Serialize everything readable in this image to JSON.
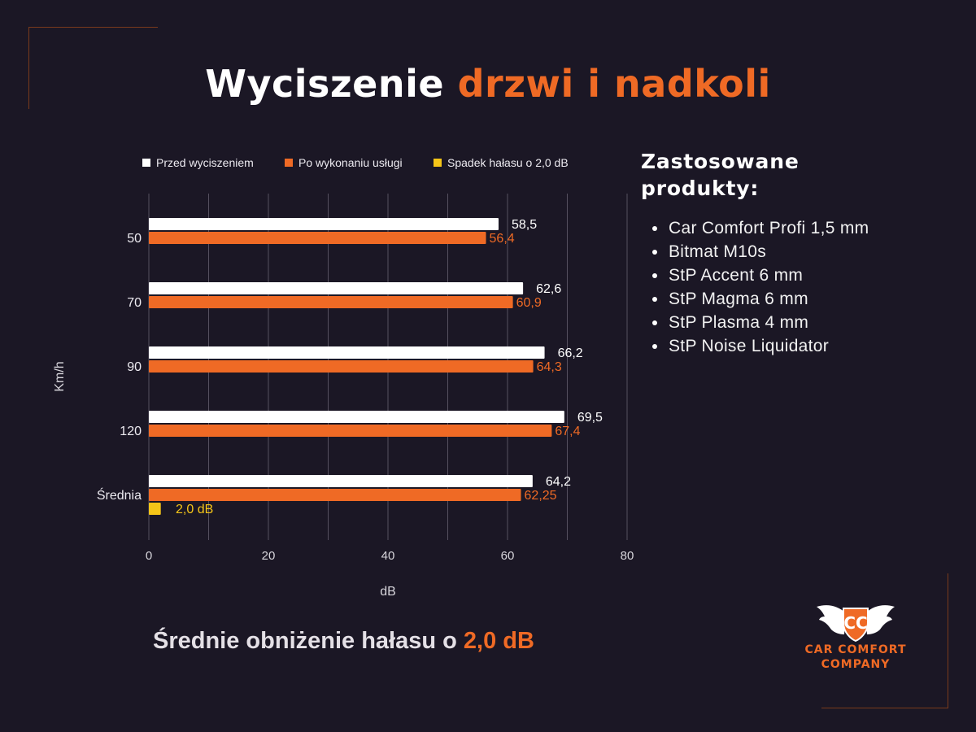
{
  "title": {
    "part1": "Wyciszenie",
    "part2": "drzwi i nadkoli"
  },
  "chart_data": {
    "type": "bar",
    "orientation": "horizontal",
    "categories": [
      "50",
      "70",
      "90",
      "120",
      "Średnia"
    ],
    "series": [
      {
        "name": "Przed wyciszeniem",
        "color": "#ffffff",
        "values": [
          58.5,
          62.6,
          66.2,
          69.5,
          64.2
        ],
        "labels": [
          "58,5",
          "62,6",
          "66,2",
          "69,5",
          "64,2"
        ]
      },
      {
        "name": "Po wykonaniu usługi",
        "color": "#ef6a25",
        "values": [
          56.4,
          60.9,
          64.3,
          67.4,
          62.25
        ],
        "labels": [
          "56,4",
          "60,9",
          "64,3",
          "67,4",
          "62,25"
        ]
      },
      {
        "name": "Spadek hałasu o 2,0 dB",
        "color": "#f5c518",
        "values": [
          null,
          null,
          null,
          null,
          2.0
        ],
        "labels": [
          "",
          "",
          "",
          "",
          "2,0 dB"
        ]
      }
    ],
    "xlabel": "dB",
    "ylabel": "Km/h",
    "xlim": [
      0,
      80
    ],
    "xticks": [
      0,
      20,
      40,
      60,
      80
    ],
    "grid": true,
    "legend": "top"
  },
  "products": {
    "heading_line1": "Zastosowane",
    "heading_line2": "produkty:",
    "items": [
      "Car Comfort Profi 1,5 mm",
      "Bitmat M10s",
      "StP Accent 6 mm",
      "StP Magma 6 mm",
      "StP Plasma 4 mm",
      "StP Noise Liquidator"
    ]
  },
  "summary": {
    "text": "Średnie obniżenie hałasu o ",
    "value": "2,0 dB"
  },
  "logo": {
    "initials": "CC",
    "line1": "CAR COMFORT",
    "line2": "COMPANY"
  }
}
